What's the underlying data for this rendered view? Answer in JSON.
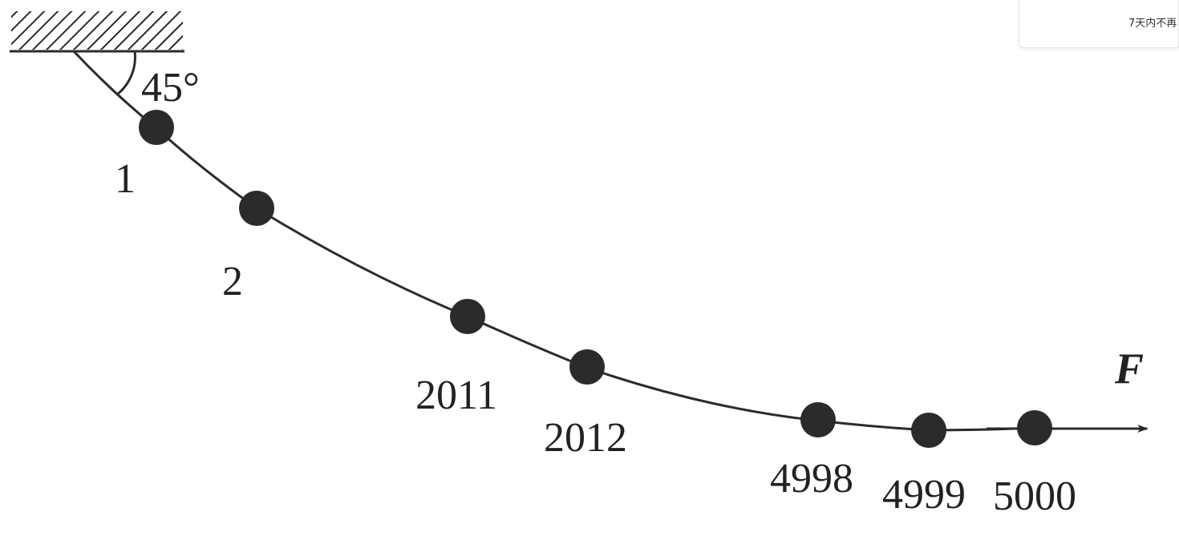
{
  "diagram": {
    "angle_label": "45°",
    "force_label": "F",
    "ball_labels": [
      "1",
      "2",
      "2011",
      "2012",
      "4998",
      "4999",
      "5000"
    ],
    "ink_color": "#2b2b2b"
  },
  "popup": {
    "text": "7天内不再"
  }
}
